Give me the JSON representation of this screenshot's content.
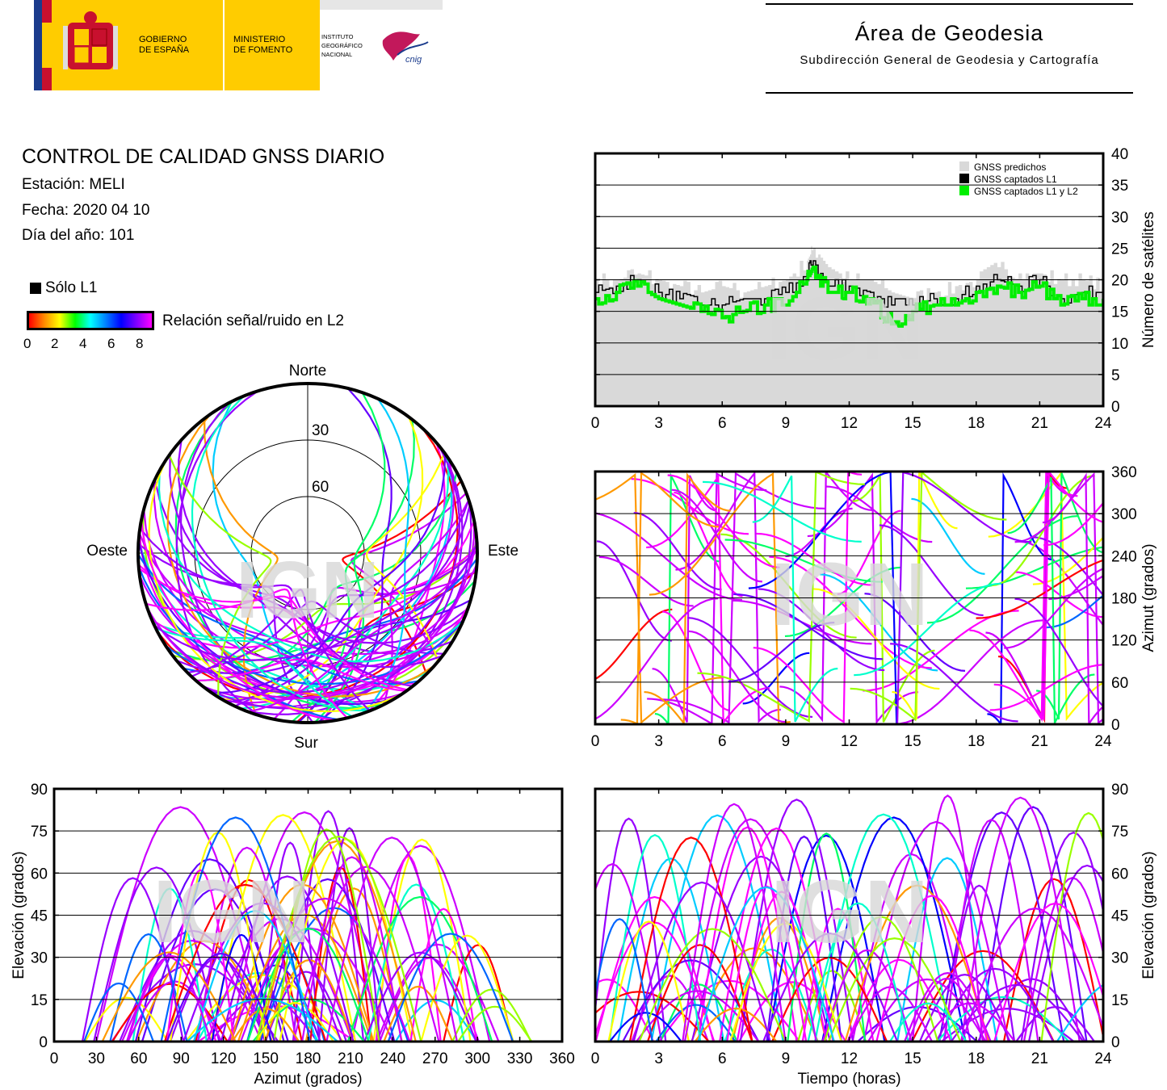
{
  "header": {
    "gov_label": [
      "GOBIERNO",
      "DE ESPAÑA"
    ],
    "ministry_label": [
      "MINISTERIO",
      "DE FOMENTO"
    ],
    "ign_label": [
      "INSTITUTO",
      "GEOGRÁFICO",
      "NACIONAL"
    ],
    "cnig_label": "cnig",
    "area_title": "Área de Geodesia",
    "area_subtitle": "Subdirección General de Geodesia y Cartografía"
  },
  "info": {
    "title": "CONTROL DE CALIDAD GNSS DIARIO",
    "station": "Estación: MELI",
    "date": "Fecha: 2020 04 10",
    "doy": "Día del año: 101"
  },
  "legend": {
    "solo_l1": "Sólo L1",
    "snr_label": "Relación señal/ruido en L2",
    "snr_ticks": [
      "0",
      "2",
      "4",
      "6",
      "8"
    ]
  },
  "watermark": "IGN",
  "colors": {
    "grid": "#000",
    "predicted": "#d9d9d9",
    "captured_l1": "#000000",
    "captured_l1_l2": "#00ee00"
  },
  "chart_data": [
    {
      "type": "area",
      "id": "satellite-count",
      "xlabel": "",
      "ylabel": "Número de satélites",
      "xlim": [
        0,
        24
      ],
      "ylim": [
        0,
        40
      ],
      "xticks": [
        "0",
        "3",
        "6",
        "9",
        "12",
        "15",
        "18",
        "21",
        "24"
      ],
      "yticks": [
        "0",
        "5",
        "10",
        "15",
        "20",
        "25",
        "30",
        "35",
        "40"
      ],
      "grid": true,
      "legend_position": "top-right",
      "x": [
        0,
        1,
        2,
        3,
        4,
        5,
        6,
        7,
        8,
        9,
        10,
        10.3,
        11,
        12,
        13,
        14,
        15,
        16,
        17,
        18,
        19,
        20,
        21,
        22,
        23,
        24
      ],
      "series": [
        {
          "name": "GNSS predichos",
          "values": [
            20,
            20,
            21,
            20,
            19,
            18,
            19,
            18,
            19,
            20,
            23,
            25,
            22,
            20,
            20,
            18,
            17,
            18,
            19,
            20,
            22,
            21,
            21,
            20,
            20,
            19
          ]
        },
        {
          "name": "GNSS captados L1",
          "values": [
            18,
            19,
            20,
            18,
            17,
            16,
            16,
            17,
            17,
            18,
            21,
            23,
            19,
            19,
            18,
            16,
            16,
            17,
            17,
            19,
            20,
            19,
            20,
            17,
            18,
            18
          ]
        },
        {
          "name": "GNSS captados L1 y L2",
          "values": [
            17,
            18,
            19,
            17,
            16,
            15,
            14,
            15,
            16,
            16,
            20,
            22,
            18,
            18,
            17,
            13,
            15,
            16,
            16,
            18,
            19,
            18,
            19,
            16,
            17,
            17
          ]
        }
      ]
    },
    {
      "type": "scatter",
      "id": "skyplot",
      "labels": {
        "north": "Norte",
        "south": "Sur",
        "east": "Este",
        "west": "Oeste"
      },
      "rings": [
        "30",
        "60"
      ]
    },
    {
      "type": "scatter",
      "id": "azimuth-time",
      "ylabel": "Azimut (grados)",
      "xlim": [
        0,
        24
      ],
      "ylim": [
        0,
        360
      ],
      "xticks": [
        "0",
        "3",
        "6",
        "9",
        "12",
        "15",
        "18",
        "21",
        "24"
      ],
      "yticks": [
        "0",
        "60",
        "120",
        "180",
        "240",
        "300",
        "360"
      ],
      "grid": true
    },
    {
      "type": "scatter",
      "id": "elevation-azimuth",
      "xlabel": "Azimut (grados)",
      "ylabel": "Elevación (grados)",
      "xlim": [
        0,
        360
      ],
      "ylim": [
        0,
        90
      ],
      "xticks": [
        "0",
        "30",
        "60",
        "90",
        "120",
        "150",
        "180",
        "210",
        "240",
        "270",
        "300",
        "330",
        "360"
      ],
      "yticks": [
        "0",
        "15",
        "30",
        "45",
        "60",
        "75",
        "90"
      ],
      "grid": true
    },
    {
      "type": "scatter",
      "id": "elevation-time",
      "xlabel": "Tiempo (horas)",
      "ylabel": "Elevación (grados)",
      "xlim": [
        0,
        24
      ],
      "ylim": [
        0,
        90
      ],
      "xticks": [
        "0",
        "3",
        "6",
        "9",
        "12",
        "15",
        "18",
        "21",
        "24"
      ],
      "yticks": [
        "0",
        "15",
        "30",
        "45",
        "60",
        "75",
        "90"
      ],
      "grid": true
    }
  ]
}
